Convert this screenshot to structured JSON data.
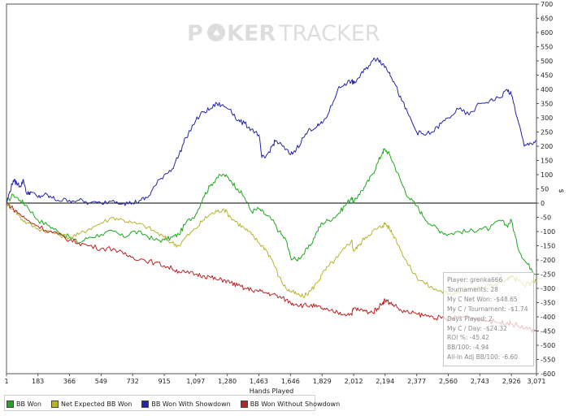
{
  "watermark": {
    "left": "P",
    "right": "KER",
    "brand": "TRACKER",
    "suit": "♠"
  },
  "chart_data": {
    "type": "line",
    "title": "",
    "xlabel": "Hands Played",
    "ylabel": "$",
    "xlim": [
      1,
      3071
    ],
    "ylim": [
      -600,
      700
    ],
    "x_ticks": [
      1,
      183,
      366,
      549,
      732,
      915,
      1097,
      1280,
      1463,
      1646,
      1829,
      2012,
      2194,
      2377,
      2560,
      2743,
      2926,
      3071
    ],
    "x_tick_labels": [
      "1",
      "183",
      "366",
      "549",
      "732",
      "915",
      "1,097",
      "1,280",
      "1,463",
      "1,646",
      "1,829",
      "2,012",
      "2,194",
      "2,377",
      "2,560",
      "2,743",
      "2,926",
      "3,071"
    ],
    "y_ticks": [
      -600,
      -550,
      -500,
      -450,
      -400,
      -350,
      -300,
      -250,
      -200,
      -150,
      -100,
      -50,
      0,
      50,
      100,
      150,
      200,
      250,
      300,
      350,
      400,
      450,
      500,
      550,
      600,
      650,
      700
    ],
    "legend_position": "bottom",
    "series": [
      {
        "name": "BB Won",
        "color": "#1fa81f",
        "x": [
          1,
          40,
          80,
          120,
          183,
          250,
          300,
          366,
          420,
          480,
          549,
          620,
          680,
          732,
          800,
          860,
          915,
          960,
          1000,
          1040,
          1097,
          1140,
          1180,
          1220,
          1260,
          1300,
          1340,
          1380,
          1420,
          1463,
          1500,
          1540,
          1580,
          1620,
          1646,
          1680,
          1720,
          1760,
          1800,
          1829,
          1870,
          1920,
          1960,
          2000,
          2012,
          2040,
          2080,
          2120,
          2150,
          2180,
          2194,
          2220,
          2250,
          2290,
          2330,
          2377,
          2420,
          2470,
          2520,
          2560,
          2620,
          2680,
          2743,
          2800,
          2860,
          2900,
          2926,
          2960,
          3000,
          3040,
          3071
        ],
        "values": [
          0,
          30,
          10,
          -10,
          -60,
          -80,
          -100,
          -120,
          -140,
          -120,
          -110,
          -100,
          -120,
          -100,
          -110,
          -130,
          -130,
          -120,
          -110,
          -70,
          -40,
          20,
          60,
          90,
          100,
          80,
          50,
          20,
          -30,
          -20,
          -40,
          -60,
          -100,
          -130,
          -190,
          -200,
          -180,
          -150,
          -100,
          -70,
          -60,
          -40,
          -10,
          20,
          0,
          30,
          60,
          100,
          140,
          180,
          190,
          170,
          130,
          70,
          20,
          -10,
          -50,
          -80,
          -100,
          -110,
          -100,
          -100,
          -90,
          -90,
          -60,
          -80,
          -60,
          -150,
          -200,
          -230,
          -250
        ]
      },
      {
        "name": "Net Expected BB Won",
        "color": "#b8b42a",
        "x": [
          1,
          40,
          80,
          120,
          183,
          250,
          300,
          366,
          420,
          480,
          549,
          620,
          680,
          732,
          800,
          860,
          915,
          960,
          1000,
          1040,
          1097,
          1140,
          1180,
          1220,
          1260,
          1300,
          1340,
          1380,
          1420,
          1463,
          1500,
          1540,
          1580,
          1620,
          1646,
          1680,
          1720,
          1760,
          1800,
          1829,
          1870,
          1920,
          1960,
          2000,
          2012,
          2040,
          2080,
          2120,
          2150,
          2180,
          2194,
          2220,
          2250,
          2290,
          2330,
          2377,
          2420,
          2470,
          2520,
          2560,
          2620,
          2680,
          2743,
          2800,
          2860,
          2900,
          2926,
          2960,
          3000,
          3040,
          3071
        ],
        "values": [
          0,
          -20,
          -50,
          -70,
          -90,
          -100,
          -110,
          -120,
          -110,
          -90,
          -70,
          -50,
          -60,
          -70,
          -80,
          -100,
          -120,
          -140,
          -150,
          -120,
          -90,
          -60,
          -40,
          -30,
          -20,
          -50,
          -70,
          -90,
          -110,
          -140,
          -160,
          -200,
          -260,
          -300,
          -310,
          -320,
          -330,
          -310,
          -280,
          -250,
          -220,
          -190,
          -160,
          -130,
          -170,
          -150,
          -120,
          -100,
          -90,
          -80,
          -70,
          -90,
          -120,
          -170,
          -220,
          -260,
          -280,
          -300,
          -310,
          -320,
          -310,
          -300,
          -300,
          -290,
          -280,
          -270,
          -260,
          -270,
          -290,
          -280,
          -270
        ]
      },
      {
        "name": "BB Won With Showdown",
        "color": "#2424a8",
        "x": [
          1,
          20,
          40,
          60,
          80,
          100,
          120,
          140,
          183,
          220,
          260,
          300,
          366,
          420,
          480,
          549,
          620,
          680,
          732,
          780,
          820,
          860,
          915,
          960,
          1000,
          1040,
          1097,
          1140,
          1180,
          1220,
          1260,
          1300,
          1340,
          1380,
          1420,
          1463,
          1480,
          1500,
          1540,
          1560,
          1600,
          1646,
          1680,
          1720,
          1760,
          1800,
          1829,
          1870,
          1920,
          1960,
          2000,
          2012,
          2040,
          2080,
          2120,
          2150,
          2180,
          2194,
          2220,
          2250,
          2290,
          2330,
          2377,
          2420,
          2470,
          2520,
          2560,
          2620,
          2680,
          2743,
          2800,
          2860,
          2900,
          2926,
          2960,
          3000,
          3040,
          3071
        ],
        "values": [
          0,
          40,
          80,
          70,
          60,
          80,
          30,
          40,
          20,
          30,
          20,
          10,
          10,
          10,
          0,
          0,
          10,
          0,
          0,
          10,
          20,
          60,
          100,
          120,
          170,
          230,
          290,
          320,
          330,
          350,
          340,
          330,
          290,
          280,
          260,
          240,
          160,
          160,
          200,
          220,
          200,
          170,
          190,
          230,
          260,
          270,
          280,
          320,
          400,
          420,
          430,
          420,
          440,
          470,
          500,
          510,
          490,
          480,
          460,
          420,
          360,
          310,
          250,
          240,
          250,
          280,
          300,
          330,
          310,
          350,
          360,
          370,
          400,
          380,
          300,
          200,
          210,
          220
        ]
      },
      {
        "name": "BB Won Without Showdown",
        "color": "#b82424",
        "x": [
          1,
          40,
          80,
          120,
          183,
          250,
          300,
          366,
          420,
          480,
          549,
          620,
          680,
          732,
          800,
          860,
          915,
          960,
          1000,
          1040,
          1097,
          1140,
          1180,
          1220,
          1260,
          1300,
          1340,
          1380,
          1420,
          1463,
          1500,
          1540,
          1580,
          1620,
          1646,
          1680,
          1720,
          1760,
          1800,
          1829,
          1870,
          1920,
          1960,
          2000,
          2012,
          2040,
          2080,
          2120,
          2150,
          2180,
          2194,
          2220,
          2250,
          2290,
          2330,
          2377,
          2420,
          2470,
          2520,
          2560,
          2620,
          2680,
          2743,
          2800,
          2860,
          2900,
          2926,
          2960,
          3000,
          3040,
          3071
        ],
        "values": [
          0,
          -20,
          -40,
          -60,
          -80,
          -100,
          -110,
          -130,
          -140,
          -150,
          -160,
          -160,
          -180,
          -190,
          -200,
          -210,
          -220,
          -230,
          -240,
          -245,
          -250,
          -255,
          -260,
          -270,
          -270,
          -280,
          -290,
          -300,
          -305,
          -310,
          -315,
          -320,
          -330,
          -340,
          -350,
          -355,
          -360,
          -360,
          -365,
          -370,
          -380,
          -385,
          -390,
          -390,
          -370,
          -375,
          -380,
          -385,
          -370,
          -350,
          -340,
          -350,
          -360,
          -380,
          -385,
          -390,
          -395,
          -400,
          -405,
          -410,
          -400,
          -400,
          -410,
          -415,
          -420,
          -420,
          -425,
          -430,
          -440,
          -445,
          -450
        ]
      }
    ]
  },
  "stats": {
    "player": "Player: grenka666",
    "tournaments": "Tournaments: 28",
    "net_won": "My C Net Won: -$48.65",
    "per_tournament": "My C / Tournament: -$1.74",
    "days_played": "Days Played: 2",
    "per_day": "My C / Day: -$24.32",
    "roi": "ROI %: -45.42",
    "bb100": "BB/100: -4.94",
    "allin_bb100": "All-In Adj BB/100: -6.60"
  },
  "legend": [
    {
      "label": "BB Won",
      "color": "#1fa81f"
    },
    {
      "label": "Net Expected BB Won",
      "color": "#b8b42a"
    },
    {
      "label": "BB Won With Showdown",
      "color": "#2424a8"
    },
    {
      "label": "BB Won Without Showdown",
      "color": "#b82424"
    }
  ]
}
